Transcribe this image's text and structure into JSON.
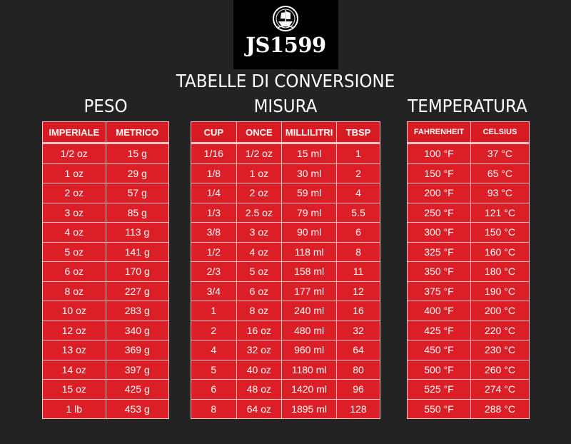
{
  "logo": {
    "text": "JS1599",
    "emblem": "ship-icon"
  },
  "title": "TABELLE DI CONVERSIONE",
  "peso": {
    "title": "PESO",
    "headers": [
      "IMPERIALE",
      "METRICO"
    ],
    "rows": [
      [
        "1/2 oz",
        "15 g"
      ],
      [
        "1 oz",
        "29 g"
      ],
      [
        "2 oz",
        "57 g"
      ],
      [
        "3 oz",
        "85 g"
      ],
      [
        "4 oz",
        "113 g"
      ],
      [
        "5 oz",
        "141 g"
      ],
      [
        "6 oz",
        "170 g"
      ],
      [
        "8 oz",
        "227 g"
      ],
      [
        "10 oz",
        "283 g"
      ],
      [
        "12 oz",
        "340 g"
      ],
      [
        "13 oz",
        "369 g"
      ],
      [
        "14 oz",
        "397 g"
      ],
      [
        "15 oz",
        "425 g"
      ],
      [
        "1 lb",
        "453 g"
      ]
    ]
  },
  "misura": {
    "title": "MISURA",
    "headers": [
      "CUP",
      "ONCE",
      "MILLILITRI",
      "TBSP"
    ],
    "rows": [
      [
        "1/16",
        "1/2 oz",
        "15  ml",
        "1"
      ],
      [
        "1/8",
        "1 oz",
        "30 ml",
        "2"
      ],
      [
        "1/4",
        "2 oz",
        "59 ml",
        "4"
      ],
      [
        "1/3",
        "2.5 oz",
        "79 ml",
        "5.5"
      ],
      [
        "3/8",
        "3 oz",
        "90 ml",
        "6"
      ],
      [
        "1/2",
        "4 oz",
        "118 ml",
        "8"
      ],
      [
        "2/3",
        "5 oz",
        "158 ml",
        "11"
      ],
      [
        "3/4",
        "6 oz",
        "177 ml",
        "12"
      ],
      [
        "1",
        "8 oz",
        "240 ml",
        "16"
      ],
      [
        "2",
        "16 oz",
        "480 ml",
        "32"
      ],
      [
        "4",
        "32 oz",
        "960 ml",
        "64"
      ],
      [
        "5",
        "40 oz",
        "1180 ml",
        "80"
      ],
      [
        "6",
        "48 oz",
        "1420 ml",
        "96"
      ],
      [
        "8",
        "64 oz",
        "1895 ml",
        "128"
      ]
    ]
  },
  "temperatura": {
    "title": "TEMPERATURA",
    "headers": [
      "FAHRENHEIT",
      "CELSIUS"
    ],
    "rows": [
      [
        "100 °F",
        "37 °C"
      ],
      [
        "150 °F",
        "65 °C"
      ],
      [
        "200 °F",
        "93 °C"
      ],
      [
        "250 °F",
        "121 °C"
      ],
      [
        "300 °F",
        "150 °C"
      ],
      [
        "325 °F",
        "160 °C"
      ],
      [
        "350 °F",
        "180 °C"
      ],
      [
        "375 °F",
        "190 °C"
      ],
      [
        "400 °F",
        "200 °C"
      ],
      [
        "425 °F",
        "220 °C"
      ],
      [
        "450 °F",
        "230 °C"
      ],
      [
        "500 °F",
        "260 °C"
      ],
      [
        "525 °F",
        "274 °C"
      ],
      [
        "550 °F",
        "288 °C"
      ]
    ]
  },
  "colors": {
    "table_red": "#dc1e26",
    "background": "#232323",
    "border": "#f8c7c8"
  }
}
